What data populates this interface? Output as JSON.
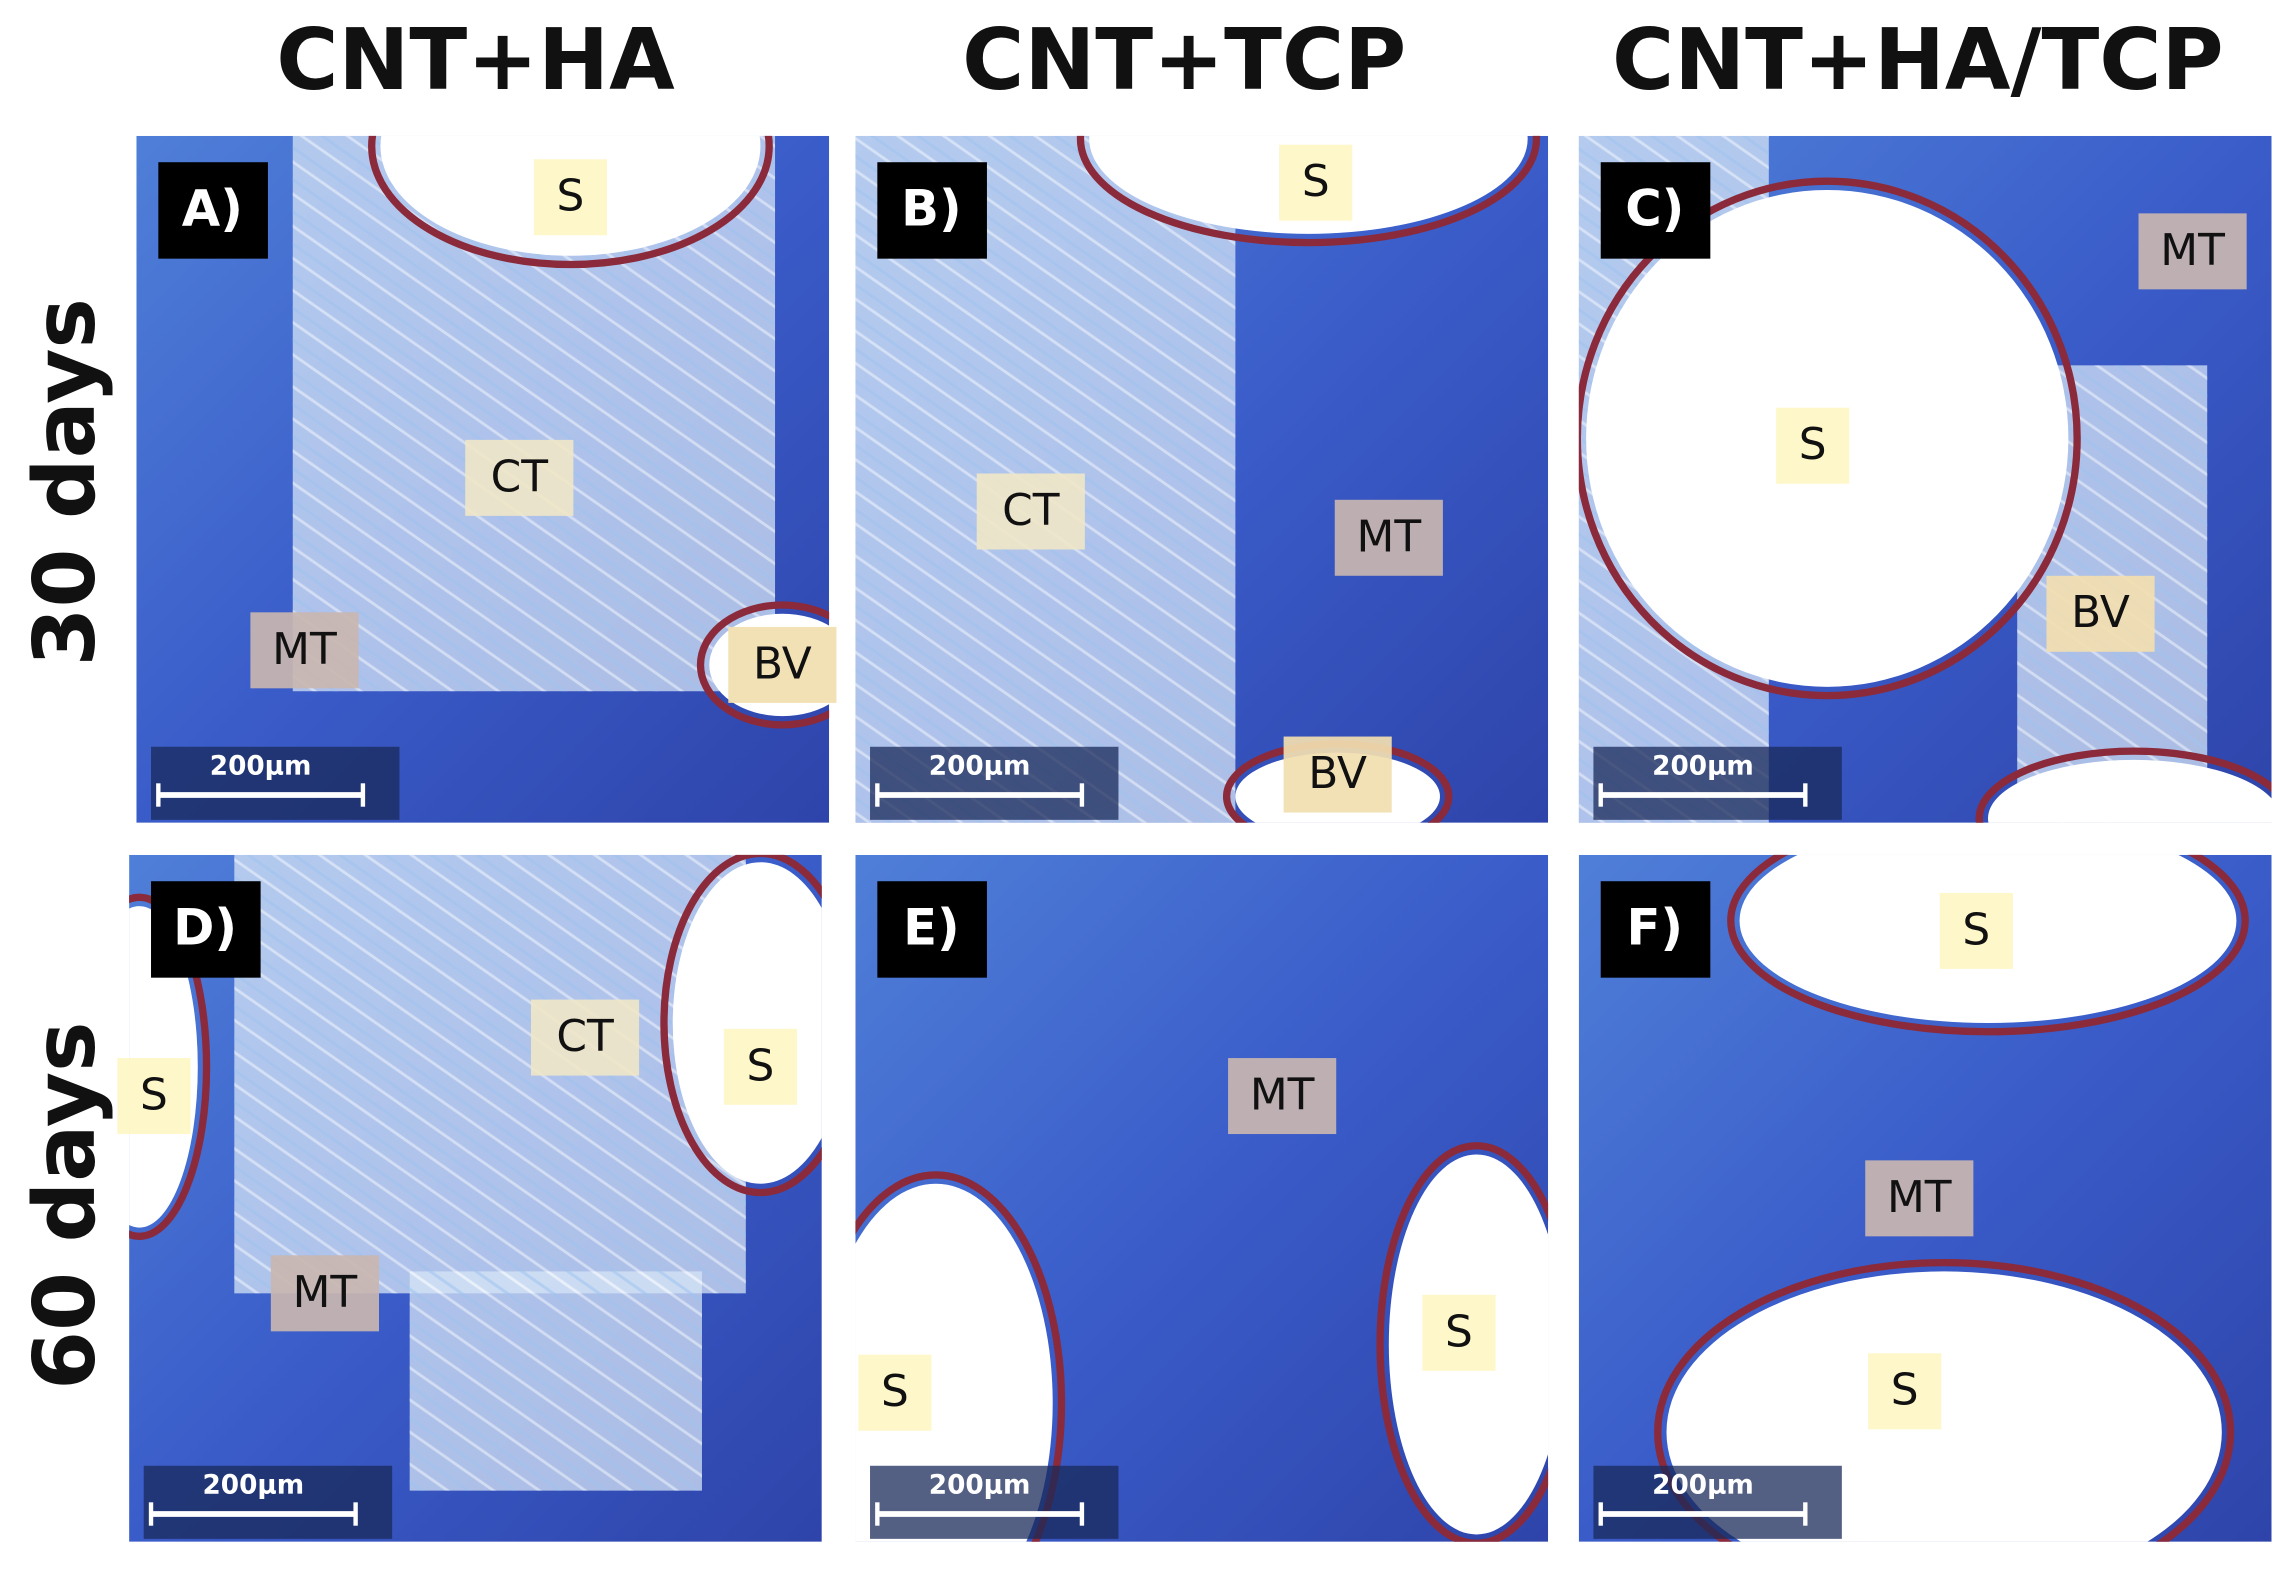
{
  "columns": [
    "CNT+HA",
    "CNT+TCP",
    "CNT+HA/TCP"
  ],
  "rows": [
    "30 days",
    "60 days"
  ],
  "panels": [
    {
      "letter": "A)",
      "scale_bar": "200µm",
      "labels": [
        "S",
        "CT",
        "MT",
        "BV"
      ]
    },
    {
      "letter": "B)",
      "scale_bar": "200µm",
      "labels": [
        "S",
        "CT",
        "MT",
        "BV"
      ]
    },
    {
      "letter": "C)",
      "scale_bar": "200µm",
      "labels": [
        "MT",
        "S",
        "BV"
      ]
    },
    {
      "letter": "D)",
      "scale_bar": "200µm",
      "labels": [
        "CT",
        "S",
        "S",
        "MT"
      ]
    },
    {
      "letter": "E)",
      "scale_bar": "200µm",
      "labels": [
        "MT",
        "S",
        "S"
      ]
    },
    {
      "letter": "F)",
      "scale_bar": "200µm",
      "labels": [
        "S",
        "MT",
        "S"
      ]
    }
  ]
}
